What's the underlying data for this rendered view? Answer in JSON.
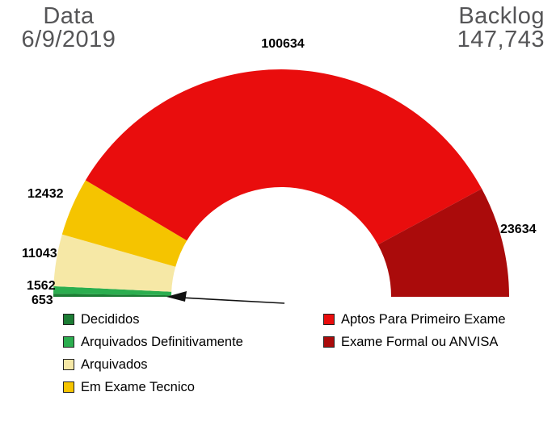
{
  "header": {
    "date_label": "Data",
    "date_value": "6/9/2019",
    "backlog_label": "Backlog",
    "backlog_value": "147,743"
  },
  "chart_data": {
    "type": "pie",
    "variant": "half-donut",
    "title": "",
    "legend_position": "bottom",
    "start_angle_deg": 180,
    "end_angle_deg": 0,
    "total_shown_label": "147,743",
    "slices": [
      {
        "label": "Decididos",
        "value": 653,
        "color": "#1c7c34"
      },
      {
        "label": "Arquivados Definitivamente",
        "value": 1562,
        "color": "#2bae4f"
      },
      {
        "label": "Arquivados",
        "value": 11043,
        "color": "#f6e8a6"
      },
      {
        "label": "Em Exame Tecnico",
        "value": 12432,
        "color": "#f5c400"
      },
      {
        "label": "Aptos Para Primeiro Exame",
        "value": 100634,
        "color": "#e90d0d"
      },
      {
        "label": "Exame Formal ou ANVISA",
        "value": 23634,
        "color": "#aa0b0b"
      }
    ]
  }
}
